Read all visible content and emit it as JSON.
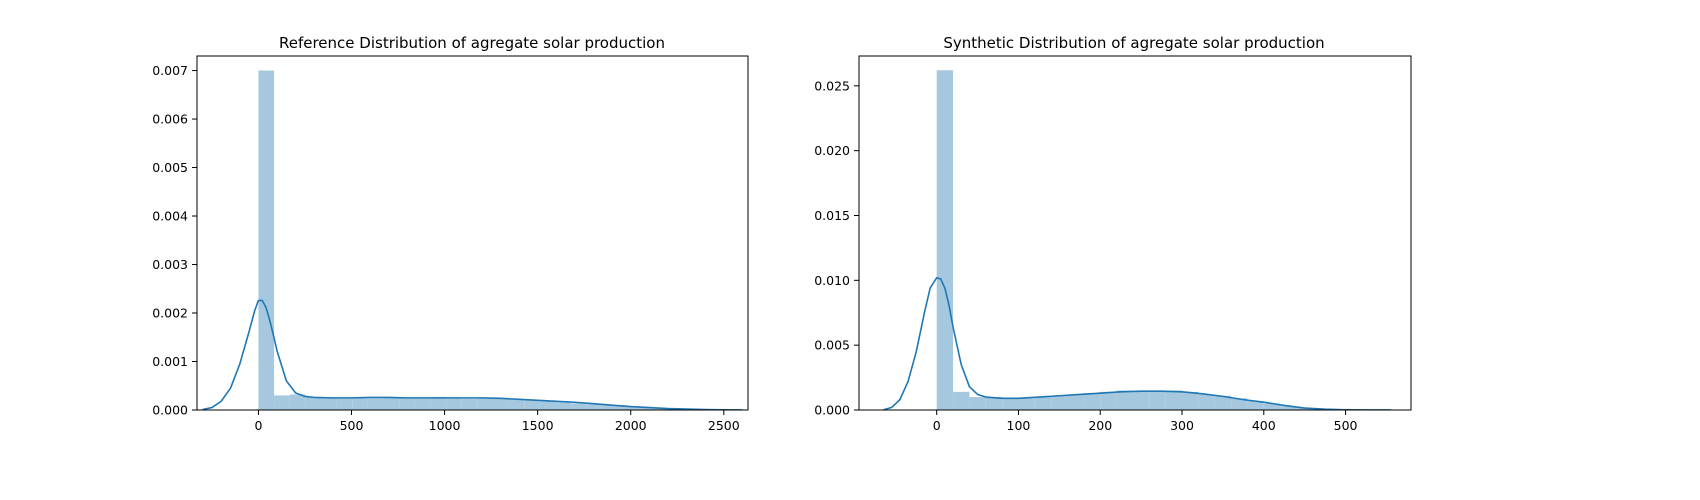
{
  "chart_data": [
    {
      "type": "histogram",
      "title": "Reference Distribution of agregate solar production",
      "xlabel": "",
      "ylabel": "",
      "xlim": [
        -330,
        2630
      ],
      "ylim": [
        0,
        0.0073
      ],
      "xticks": [
        0,
        500,
        1000,
        1500,
        2000,
        2500
      ],
      "xtick_labels": [
        "0",
        "500",
        "1000",
        "1500",
        "2000",
        "2500"
      ],
      "yticks": [
        0,
        0.001,
        0.002,
        0.003,
        0.004,
        0.005,
        0.006,
        0.007
      ],
      "ytick_labels": [
        "0.000",
        "0.001",
        "0.002",
        "0.003",
        "0.004",
        "0.005",
        "0.006",
        "0.007"
      ],
      "bin_width": 84,
      "histogram": {
        "bin_left_edges": [
          0,
          84,
          168,
          252,
          336,
          420,
          504,
          588,
          672,
          756,
          840,
          924,
          1008,
          1092,
          1176,
          1260,
          1344,
          1428,
          1512,
          1596,
          1680,
          1764,
          1848,
          1932,
          2016,
          2100,
          2184,
          2268,
          2352,
          2436
        ],
        "heights": [
          0.007,
          0.0003,
          0.00032,
          0.00027,
          0.00025,
          0.00024,
          0.00024,
          0.00024,
          0.00025,
          0.00024,
          0.00025,
          0.00027,
          0.00024,
          0.00023,
          0.00024,
          0.00024,
          0.00022,
          0.0002,
          0.00018,
          0.00016,
          0.00014,
          0.00012,
          0.0001,
          8e-05,
          6e-05,
          4e-05,
          2e-05,
          1e-05,
          5e-06,
          3e-06
        ]
      },
      "kde": {
        "x": [
          -300,
          -250,
          -200,
          -150,
          -100,
          -50,
          -20,
          0,
          20,
          40,
          60,
          80,
          100,
          150,
          200,
          250,
          300,
          400,
          500,
          600,
          700,
          800,
          900,
          1000,
          1100,
          1200,
          1300,
          1400,
          1500,
          1600,
          1700,
          1800,
          1900,
          2000,
          2100,
          2200,
          2300,
          2400,
          2500,
          2600
        ],
        "y": [
          1e-05,
          5e-05,
          0.00018,
          0.00045,
          0.00095,
          0.00162,
          0.00205,
          0.00226,
          0.00226,
          0.00212,
          0.00186,
          0.00155,
          0.00122,
          0.0006,
          0.00035,
          0.00028,
          0.00026,
          0.00025,
          0.00025,
          0.00026,
          0.00026,
          0.00025,
          0.00025,
          0.00025,
          0.00025,
          0.00025,
          0.00024,
          0.00022,
          0.0002,
          0.00018,
          0.00016,
          0.00013,
          0.0001,
          7e-05,
          5e-05,
          3e-05,
          2e-05,
          1e-05,
          5e-06,
          2e-06
        ]
      }
    },
    {
      "type": "histogram",
      "title": "Synthetic Distribution of agregate solar production",
      "xlabel": "",
      "ylabel": "",
      "xlim": [
        -95,
        580
      ],
      "ylim": [
        0,
        0.0273
      ],
      "xticks": [
        0,
        100,
        200,
        300,
        400,
        500
      ],
      "xtick_labels": [
        "0",
        "100",
        "200",
        "300",
        "400",
        "500"
      ],
      "yticks": [
        0,
        0.005,
        0.01,
        0.015,
        0.02,
        0.025
      ],
      "ytick_labels": [
        "0.000",
        "0.005",
        "0.010",
        "0.015",
        "0.020",
        "0.025"
      ],
      "bin_width": 20,
      "histogram": {
        "bin_left_edges": [
          0,
          20,
          40,
          60,
          80,
          100,
          120,
          140,
          160,
          180,
          200,
          220,
          240,
          260,
          280,
          300,
          320,
          340,
          360,
          380,
          400,
          420,
          440,
          460,
          480,
          500,
          520
        ],
        "heights": [
          0.0262,
          0.0014,
          0.001,
          0.001,
          0.0009,
          0.0009,
          0.001,
          0.0011,
          0.0012,
          0.0013,
          0.0014,
          0.0015,
          0.0015,
          0.0015,
          0.0015,
          0.0014,
          0.0012,
          0.0011,
          0.0009,
          0.0007,
          0.0005,
          0.0003,
          0.00015,
          8e-05,
          4e-05,
          2e-05,
          1e-05
        ]
      },
      "kde": {
        "x": [
          -65,
          -55,
          -45,
          -35,
          -25,
          -15,
          -8,
          0,
          5,
          10,
          15,
          20,
          30,
          40,
          50,
          60,
          80,
          100,
          125,
          150,
          175,
          200,
          225,
          250,
          275,
          300,
          325,
          350,
          375,
          400,
          425,
          450,
          475,
          500,
          525,
          555
        ],
        "y": [
          2e-05,
          0.0002,
          0.0008,
          0.0022,
          0.0045,
          0.0075,
          0.0094,
          0.0102,
          0.0101,
          0.0094,
          0.0081,
          0.0064,
          0.0035,
          0.0018,
          0.0012,
          0.001,
          0.0009,
          0.0009,
          0.001,
          0.0011,
          0.0012,
          0.0013,
          0.0014,
          0.00145,
          0.00145,
          0.0014,
          0.00125,
          0.00105,
          0.0008,
          0.0006,
          0.00035,
          0.00015,
          6e-05,
          2e-05,
          1e-05,
          5e-06
        ]
      }
    }
  ],
  "colors": {
    "bar_fill": "#a6c8df",
    "kde_line": "#1f77b4",
    "axes": "#000000"
  }
}
